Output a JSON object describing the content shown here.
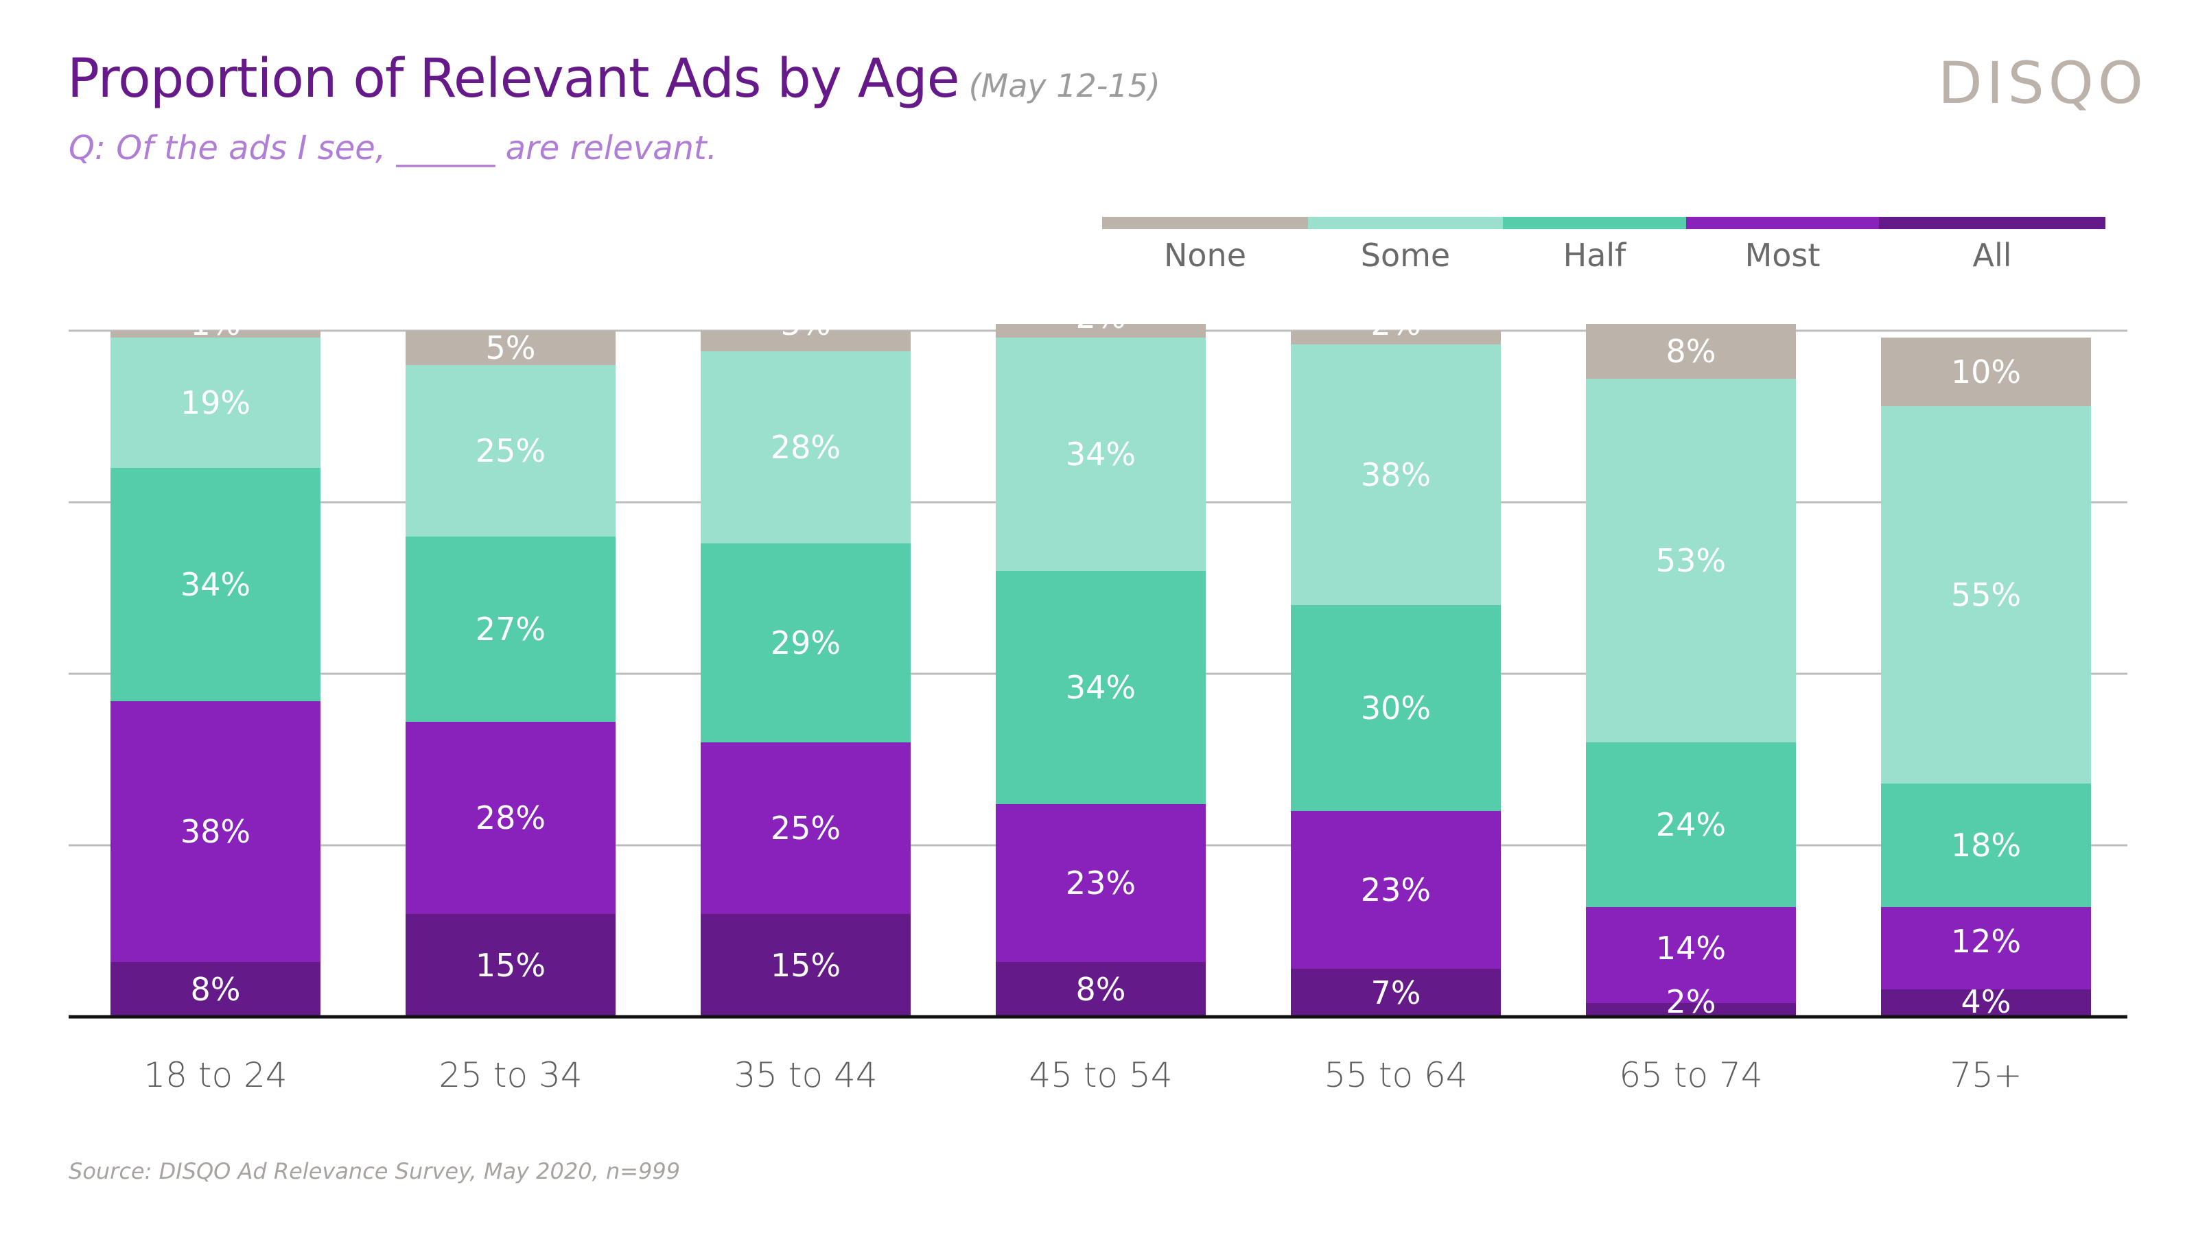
{
  "header": {
    "title": "Proportion of Relevant Ads by Age",
    "date_range": "(May 12-15)",
    "subtitle": "Q: Of the ads I see, ______ are relevant.",
    "logo_text": "DISQO"
  },
  "footer": {
    "source": "Source: DISQO Ad Relevance Survey, May 2020, n=999"
  },
  "chart_data": {
    "type": "bar",
    "stacked": true,
    "orientation": "vertical",
    "title": "Proportion of Relevant Ads by Age",
    "subtitle": "Q: Of the ads I see, ______ are relevant.",
    "xlabel": "",
    "ylabel": "",
    "ylim": [
      0,
      100
    ],
    "y_ticks": [
      0,
      25,
      50,
      75,
      100
    ],
    "y_tick_labels_visible": false,
    "grid": true,
    "legend_position": "top-right",
    "value_suffix": "%",
    "categories": [
      "18 to 24",
      "25 to 34",
      "35 to 44",
      "45 to 54",
      "55 to 64",
      "65 to 74",
      "75+"
    ],
    "series": [
      {
        "name": "All",
        "color": "#651a8a",
        "values": [
          8,
          15,
          15,
          8,
          7,
          2,
          4
        ]
      },
      {
        "name": "Most",
        "color": "#8822bb",
        "values": [
          38,
          28,
          25,
          23,
          23,
          14,
          12
        ]
      },
      {
        "name": "Half",
        "color": "#55ccaa",
        "values": [
          34,
          27,
          29,
          34,
          30,
          24,
          18
        ]
      },
      {
        "name": "Some",
        "color": "#9be0cc",
        "values": [
          19,
          25,
          28,
          34,
          38,
          53,
          55
        ]
      },
      {
        "name": "None",
        "color": "#bcb3aa",
        "values": [
          1,
          5,
          3,
          2,
          2,
          8,
          10
        ]
      }
    ],
    "legend_order": [
      "None",
      "Some",
      "Half",
      "Most",
      "All"
    ]
  }
}
